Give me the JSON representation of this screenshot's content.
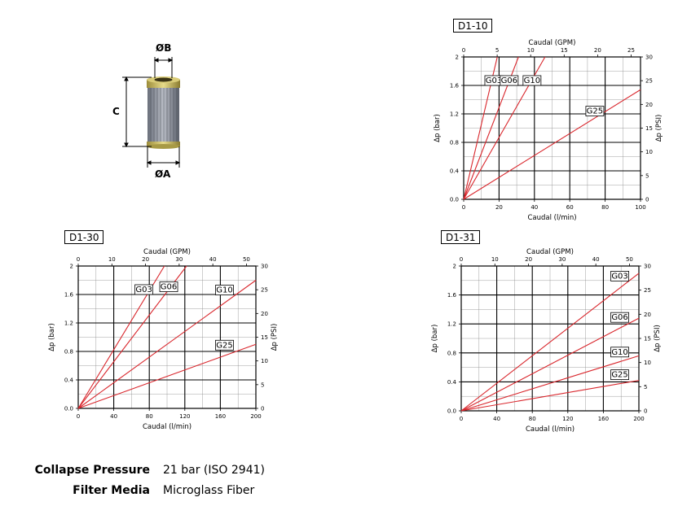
{
  "product": {
    "dimension_labels": {
      "b": "ØB",
      "a": "ØA",
      "c": "C"
    }
  },
  "specs": [
    {
      "label": "Collapse Pressure",
      "value": "21 bar (ISO 2941)"
    },
    {
      "label": "Filter Media",
      "value": "Microglass Fiber"
    }
  ],
  "chart_data": [
    {
      "type": "line",
      "id": "D1-10",
      "title": "D1-10",
      "xlabel": "Caudal (l/min)",
      "x2label": "Caudal (GPM)",
      "ylabel": "Δp (bar)",
      "y2label": "Δp (PSI)",
      "xlim": [
        0,
        100
      ],
      "ylim": [
        0,
        2
      ],
      "x2lim": [
        0,
        26.4
      ],
      "y2lim": [
        0,
        30
      ],
      "xticks": [
        0,
        20,
        40,
        60,
        80,
        100
      ],
      "yticks": [
        0,
        0.4,
        0.8,
        1.2,
        1.6,
        2
      ],
      "x2ticks": [
        0,
        5,
        10,
        15,
        20,
        25
      ],
      "y2ticks": [
        0,
        5,
        10,
        15,
        20,
        25,
        30
      ],
      "xticklabels": [
        "0",
        "20",
        "40",
        "60",
        "80",
        "100"
      ],
      "yticklabels": [
        "0.0",
        "0.4",
        "0.8",
        "1.2",
        "1.6",
        "2"
      ],
      "x2ticklabels": [
        "0",
        "5",
        "10",
        "15",
        "20",
        "25"
      ],
      "y2ticklabels": [
        "0",
        "5",
        "10",
        "15",
        "20",
        "25",
        "30"
      ],
      "grid": true,
      "series": [
        {
          "name": "G03",
          "x": [
            0,
            19
          ],
          "y": [
            0,
            2.0
          ]
        },
        {
          "name": "G06",
          "x": [
            0,
            31
          ],
          "y": [
            0,
            2.0
          ]
        },
        {
          "name": "G10",
          "x": [
            0,
            46
          ],
          "y": [
            0,
            2.0
          ]
        },
        {
          "name": "G25",
          "x": [
            0,
            100
          ],
          "y": [
            0,
            1.54
          ]
        }
      ],
      "colors": {
        "line": "#d9262c",
        "grid": "#000000"
      }
    },
    {
      "type": "line",
      "id": "D1-30",
      "title": "D1-30",
      "xlabel": "Caudal (l/min)",
      "x2label": "Caudal (GPM)",
      "ylabel": "Δp (bar)",
      "y2label": "Δp (PSI)",
      "xlim": [
        0,
        200
      ],
      "ylim": [
        0,
        2
      ],
      "x2lim": [
        0,
        52.8
      ],
      "y2lim": [
        0,
        30
      ],
      "xticks": [
        0,
        40,
        80,
        120,
        160,
        200
      ],
      "yticks": [
        0,
        0.4,
        0.8,
        1.2,
        1.6,
        2
      ],
      "x2ticks": [
        0,
        10,
        20,
        30,
        40,
        50
      ],
      "y2ticks": [
        0,
        5,
        10,
        15,
        20,
        25,
        30
      ],
      "xticklabels": [
        "0",
        "40",
        "80",
        "120",
        "160",
        "200"
      ],
      "yticklabels": [
        "0.0",
        "0.4",
        "0.8",
        "1.2",
        "1.6",
        "2"
      ],
      "x2ticklabels": [
        "0",
        "10",
        "20",
        "30",
        "40",
        "50"
      ],
      "y2ticklabels": [
        "0",
        "5",
        "10",
        "15",
        "20",
        "25",
        "30"
      ],
      "grid": true,
      "series": [
        {
          "name": "G03",
          "x": [
            0,
            97
          ],
          "y": [
            0,
            2.0
          ]
        },
        {
          "name": "G06",
          "x": [
            0,
            122
          ],
          "y": [
            0,
            2.0
          ]
        },
        {
          "name": "G10",
          "x": [
            0,
            200
          ],
          "y": [
            0,
            1.8
          ]
        },
        {
          "name": "G25",
          "x": [
            0,
            200
          ],
          "y": [
            0,
            0.9
          ]
        }
      ],
      "colors": {
        "line": "#d9262c",
        "grid": "#000000"
      }
    },
    {
      "type": "line",
      "id": "D1-31",
      "title": "D1-31",
      "xlabel": "Caudal (l/min)",
      "x2label": "Caudal (GPM)",
      "ylabel": "Δp (bar)",
      "y2label": "Δp (PSI)",
      "xlim": [
        0,
        200
      ],
      "ylim": [
        0,
        2
      ],
      "x2lim": [
        0,
        52.8
      ],
      "y2lim": [
        0,
        30
      ],
      "xticks": [
        0,
        40,
        80,
        120,
        160,
        200
      ],
      "yticks": [
        0,
        0.4,
        0.8,
        1.2,
        1.6,
        2
      ],
      "x2ticks": [
        0,
        10,
        20,
        30,
        40,
        50
      ],
      "y2ticks": [
        0,
        5,
        10,
        15,
        20,
        25,
        30
      ],
      "xticklabels": [
        "0",
        "40",
        "80",
        "120",
        "160",
        "200"
      ],
      "yticklabels": [
        "0.0",
        "0.4",
        "0.8",
        "1.2",
        "1.6",
        "2"
      ],
      "x2ticklabels": [
        "0",
        "10",
        "20",
        "30",
        "40",
        "50"
      ],
      "y2ticklabels": [
        "0",
        "5",
        "10",
        "15",
        "20",
        "25",
        "30"
      ],
      "grid": true,
      "series": [
        {
          "name": "G03",
          "x": [
            0,
            200
          ],
          "y": [
            0,
            1.9
          ]
        },
        {
          "name": "G06",
          "x": [
            0,
            200
          ],
          "y": [
            0,
            1.28
          ]
        },
        {
          "name": "G10",
          "x": [
            0,
            200
          ],
          "y": [
            0,
            0.76
          ]
        },
        {
          "name": "G25",
          "x": [
            0,
            200
          ],
          "y": [
            0,
            0.42
          ]
        }
      ],
      "colors": {
        "line": "#d9262c",
        "grid": "#000000"
      }
    }
  ]
}
